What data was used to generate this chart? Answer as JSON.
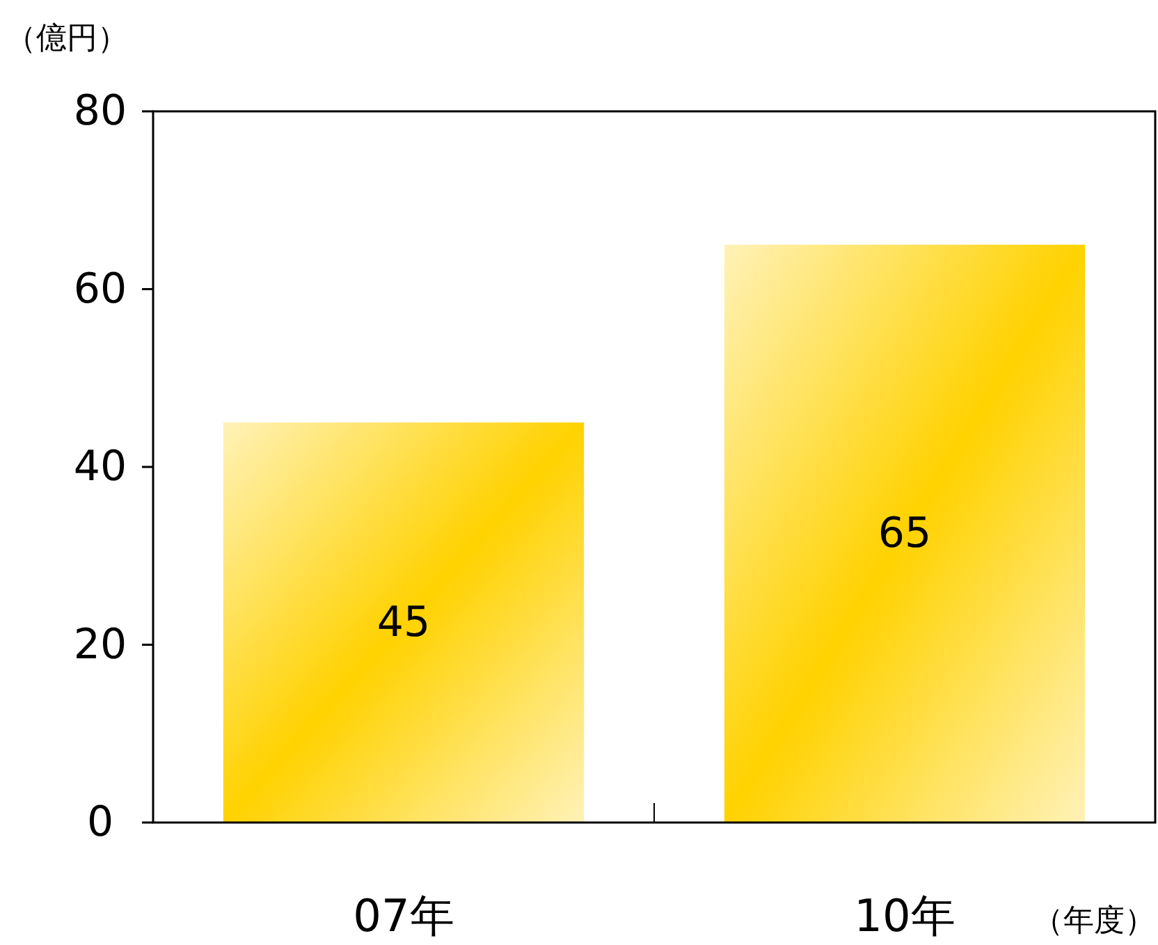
{
  "chart_data": {
    "type": "bar",
    "ylabel": "（億円）",
    "xlabel": "（年度）",
    "categories": [
      "07年",
      "10年"
    ],
    "values": [
      45,
      65
    ],
    "color": "#ffd200",
    "ylim": [
      0,
      80
    ],
    "yticks": [
      0,
      20,
      40,
      60,
      80
    ],
    "grid": false,
    "data_labels": true
  }
}
